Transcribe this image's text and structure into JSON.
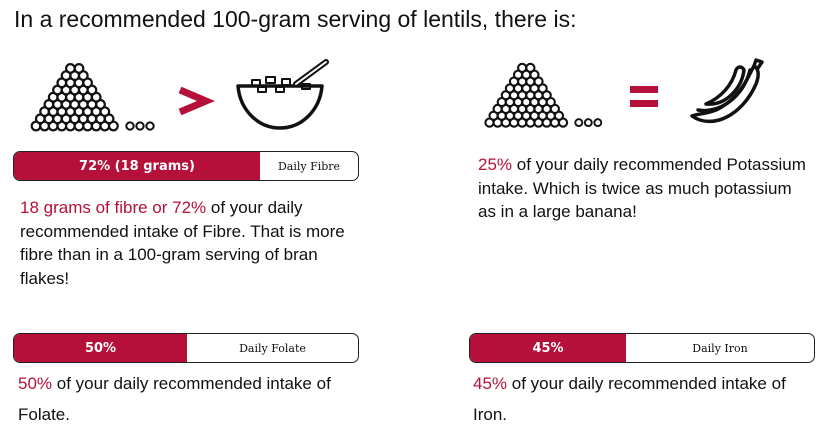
{
  "header": {
    "title": "In a recommended 100-gram serving of lentils, there is:"
  },
  "colors": {
    "accent": "#b5103a",
    "text": "#111111",
    "border": "#222222"
  },
  "fibre": {
    "icons": [
      "lentil-pile-icon",
      "greater-than-icon",
      "cereal-bowl-icon"
    ],
    "bar": {
      "fill_label": "72% (18 grams)",
      "side_label": "Daily Fibre",
      "percent": 72
    },
    "highlight": "18 grams of fibre or 72%",
    "text": " of your daily recommended intake of Fibre. That is more fibre than in a 100-gram serving of bran flakes!"
  },
  "potassium": {
    "icons": [
      "lentil-pile-icon",
      "equals-icon",
      "banana-icon"
    ],
    "highlight": "25%",
    "text": " of your daily recommended Potassium intake. Which is twice as much potassium as in a large banana!"
  },
  "folate": {
    "bar": {
      "fill_label": "50%",
      "side_label": "Daily Folate",
      "percent": 50
    },
    "highlight": "50%",
    "text": " of your daily recommended intake of Folate."
  },
  "iron": {
    "bar": {
      "fill_label": "45%",
      "side_label": "Daily Iron",
      "percent": 45
    },
    "highlight": "45%",
    "text": " of your daily recommended intake of Iron."
  }
}
